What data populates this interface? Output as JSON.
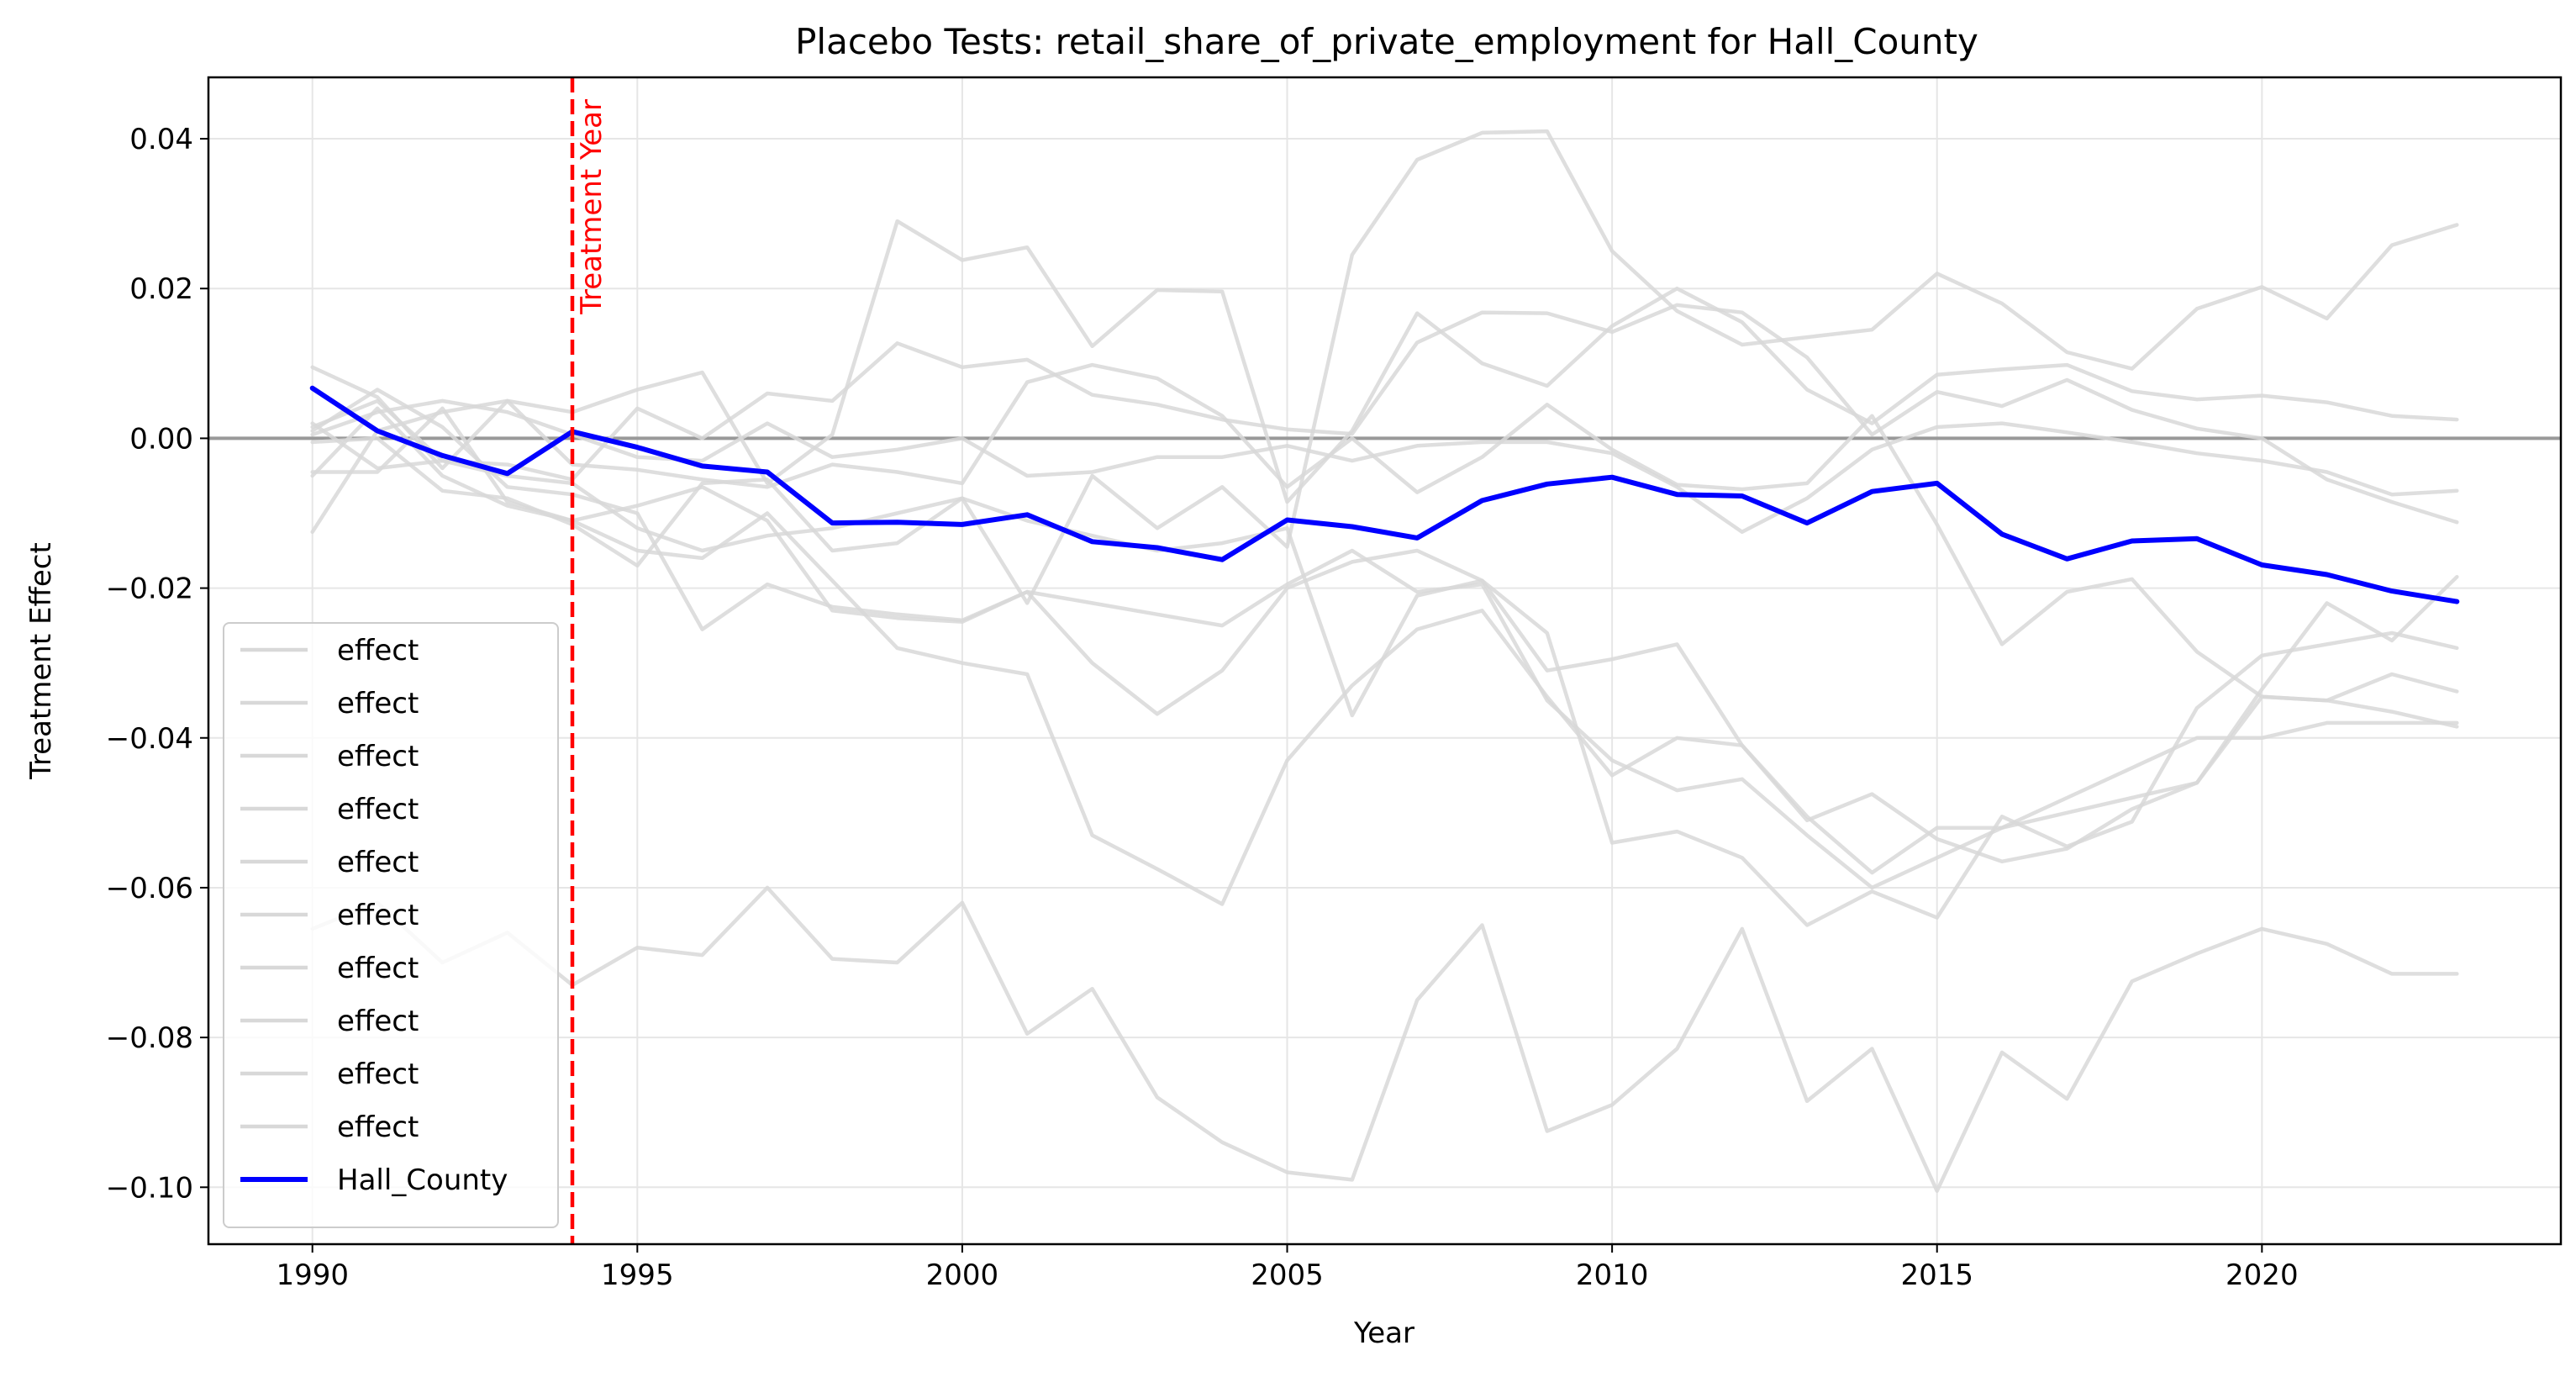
{
  "chart_data": {
    "type": "line",
    "title": "Placebo Tests: retail_share_of_private_employment for Hall_County",
    "xlabel": "Year",
    "ylabel": "Treatment Effect",
    "xlim": [
      1988.4,
      2024.6
    ],
    "ylim": [
      -0.1076,
      0.0482
    ],
    "xticks": [
      1990,
      1995,
      2000,
      2005,
      2010,
      2015,
      2020
    ],
    "yticks": [
      0.04,
      0.02,
      0.0,
      -0.02,
      -0.04,
      -0.06,
      -0.08,
      -0.1
    ],
    "ytick_labels": [
      "0.04",
      "0.02",
      "0.00",
      "−0.02",
      "−0.04",
      "−0.06",
      "−0.08",
      "−0.10"
    ],
    "grid": true,
    "legend_position": "lower-left",
    "zero_line": {
      "y": 0,
      "color": "#999999"
    },
    "treatment_line": {
      "x": 1994,
      "label": "Treatment Year",
      "color": "#ff0000"
    },
    "years": [
      1990,
      1991,
      1992,
      1993,
      1994,
      1995,
      1996,
      1997,
      1998,
      1999,
      2000,
      2001,
      2002,
      2003,
      2004,
      2005,
      2006,
      2007,
      2008,
      2009,
      2010,
      2011,
      2012,
      2013,
      2014,
      2015,
      2016,
      2017,
      2018,
      2019,
      2020,
      2021,
      2022,
      2023
    ],
    "placebo_color": "#d8d8d8",
    "series": [
      {
        "name": "effect",
        "values": [
          0.0095,
          0.0055,
          -0.004,
          0.005,
          0.0035,
          0.0065,
          0.0088,
          -0.006,
          0.0005,
          0.029,
          0.0238,
          0.0255,
          0.0123,
          0.0198,
          0.0196,
          -0.0085,
          0.001,
          0.0167,
          0.01,
          0.007,
          0.015,
          0.02,
          0.0155,
          0.0065,
          0.002,
          0.0085,
          0.0092,
          0.0098,
          0.0063,
          0.0052,
          0.0057,
          0.0048,
          0.003,
          0.0025
        ]
      },
      {
        "name": "effect",
        "values": [
          0.0015,
          0.005,
          -0.003,
          -0.0035,
          -0.0055,
          0.004,
          0.0,
          0.006,
          0.005,
          0.0127,
          0.0095,
          0.0105,
          0.0058,
          0.0045,
          0.0025,
          0.0012,
          0.0006,
          0.0128,
          0.0168,
          0.0167,
          0.0142,
          0.0178,
          0.0168,
          0.0108,
          0.0005,
          0.0062,
          0.0043,
          0.0078,
          0.0038,
          0.0013,
          0.0,
          -0.0055,
          -0.0085,
          -0.0112
        ]
      },
      {
        "name": "effect",
        "values": [
          -0.0125,
          0.001,
          0.0035,
          0.005,
          -0.0035,
          -0.0042,
          -0.0055,
          -0.0065,
          -0.0035,
          -0.0045,
          -0.006,
          0.0075,
          0.0098,
          0.008,
          0.003,
          -0.0065,
          0.0,
          -0.0072,
          -0.0025,
          0.0045,
          -0.0015,
          -0.0062,
          -0.0068,
          -0.006,
          0.003,
          -0.0115,
          -0.0275,
          -0.0205,
          -0.0188,
          -0.0285,
          -0.0345,
          -0.035,
          -0.0315,
          -0.0338
        ]
      },
      {
        "name": "effect",
        "values": [
          -0.0005,
          0.0,
          -0.007,
          -0.008,
          -0.0115,
          -0.017,
          -0.006,
          -0.0055,
          -0.015,
          -0.014,
          -0.008,
          -0.022,
          -0.005,
          -0.012,
          -0.0065,
          -0.0145,
          0.0245,
          0.0372,
          0.0408,
          0.041,
          0.025,
          0.017,
          0.0125,
          0.0135,
          0.0145,
          0.022,
          0.018,
          0.0115,
          0.0093,
          0.0173,
          0.0202,
          0.016,
          0.0258,
          0.0285
        ]
      },
      {
        "name": "effect",
        "values": [
          0.001,
          0.0065,
          0.0015,
          -0.0065,
          -0.0075,
          -0.01,
          -0.0255,
          -0.0195,
          -0.0225,
          -0.0235,
          -0.0243,
          -0.0205,
          -0.03,
          -0.0368,
          -0.031,
          -0.02,
          -0.0165,
          -0.015,
          -0.019,
          -0.031,
          -0.0295,
          -0.0275,
          -0.041,
          -0.051,
          -0.0475,
          -0.0535,
          -0.0565,
          -0.0548,
          -0.0495,
          -0.046,
          -0.0335,
          -0.022,
          -0.027,
          -0.0185
        ]
      },
      {
        "name": "effect",
        "values": [
          -0.0045,
          -0.0045,
          0.004,
          -0.0085,
          -0.011,
          -0.015,
          -0.016,
          -0.01,
          -0.019,
          -0.028,
          -0.03,
          -0.0315,
          -0.053,
          -0.0575,
          -0.0622,
          -0.043,
          -0.033,
          -0.0255,
          -0.023,
          -0.0345,
          -0.045,
          -0.04,
          -0.041,
          -0.0505,
          -0.058,
          -0.052,
          -0.052,
          -0.048,
          -0.044,
          -0.04,
          -0.04,
          -0.038,
          -0.038,
          -0.038
        ]
      },
      {
        "name": "effect",
        "values": [
          0.0005,
          0.0035,
          0.005,
          0.0035,
          0.0005,
          -0.0025,
          -0.003,
          0.002,
          -0.0025,
          -0.0015,
          0.0,
          -0.005,
          -0.0045,
          -0.0025,
          -0.0025,
          -0.001,
          -0.003,
          -0.001,
          -0.0005,
          -0.0005,
          -0.002,
          -0.0065,
          -0.0125,
          -0.008,
          -0.0015,
          0.0015,
          0.002,
          0.0008,
          -0.0005,
          -0.002,
          -0.003,
          -0.0045,
          -0.0075,
          -0.007
        ]
      },
      {
        "name": "effect",
        "values": [
          -0.005,
          0.004,
          -0.005,
          -0.009,
          -0.011,
          -0.009,
          -0.0065,
          -0.011,
          -0.023,
          -0.024,
          -0.0245,
          -0.0205,
          -0.022,
          -0.0235,
          -0.025,
          -0.0195,
          -0.015,
          -0.0205,
          -0.0195,
          -0.035,
          -0.043,
          -0.047,
          -0.0455,
          -0.053,
          -0.06,
          -0.056,
          -0.052,
          -0.05,
          -0.048,
          -0.046,
          -0.0345,
          -0.035,
          -0.0365,
          -0.0385
        ]
      },
      {
        "name": "effect",
        "values": [
          -0.0655,
          -0.062,
          -0.07,
          -0.066,
          -0.073,
          -0.068,
          -0.069,
          -0.06,
          -0.0695,
          -0.07,
          -0.062,
          -0.0795,
          -0.0735,
          -0.088,
          -0.094,
          -0.098,
          -0.099,
          -0.075,
          -0.065,
          -0.0925,
          -0.089,
          -0.0815,
          -0.0655,
          -0.0885,
          -0.0815,
          -0.1005,
          -0.082,
          -0.0882,
          -0.0725,
          -0.0688,
          -0.0655,
          -0.0675,
          -0.0715,
          -0.0715
        ]
      },
      {
        "name": "effect",
        "values": [
          0.002,
          -0.004,
          -0.003,
          -0.005,
          -0.006,
          -0.012,
          -0.015,
          -0.013,
          -0.012,
          -0.01,
          -0.008,
          -0.011,
          -0.013,
          -0.015,
          -0.014,
          -0.012,
          -0.037,
          -0.021,
          -0.019,
          -0.026,
          -0.054,
          -0.0525,
          -0.056,
          -0.065,
          -0.0605,
          -0.064,
          -0.0505,
          -0.0545,
          -0.0512,
          -0.036,
          -0.029,
          -0.0275,
          -0.026,
          -0.028
        ]
      },
      {
        "name": "Hall_County",
        "color": "#0000ff",
        "values": [
          0.0067,
          0.001,
          -0.0023,
          -0.0047,
          0.0009,
          -0.0012,
          -0.0037,
          -0.0045,
          -0.0113,
          -0.0112,
          -0.0115,
          -0.0102,
          -0.0138,
          -0.0146,
          -0.0162,
          -0.0109,
          -0.0118,
          -0.0133,
          -0.0083,
          -0.0061,
          -0.0052,
          -0.0075,
          -0.0077,
          -0.0113,
          -0.0071,
          -0.006,
          -0.0128,
          -0.0161,
          -0.0137,
          -0.0134,
          -0.0169,
          -0.0182,
          -0.0204,
          -0.0218
        ]
      }
    ]
  }
}
